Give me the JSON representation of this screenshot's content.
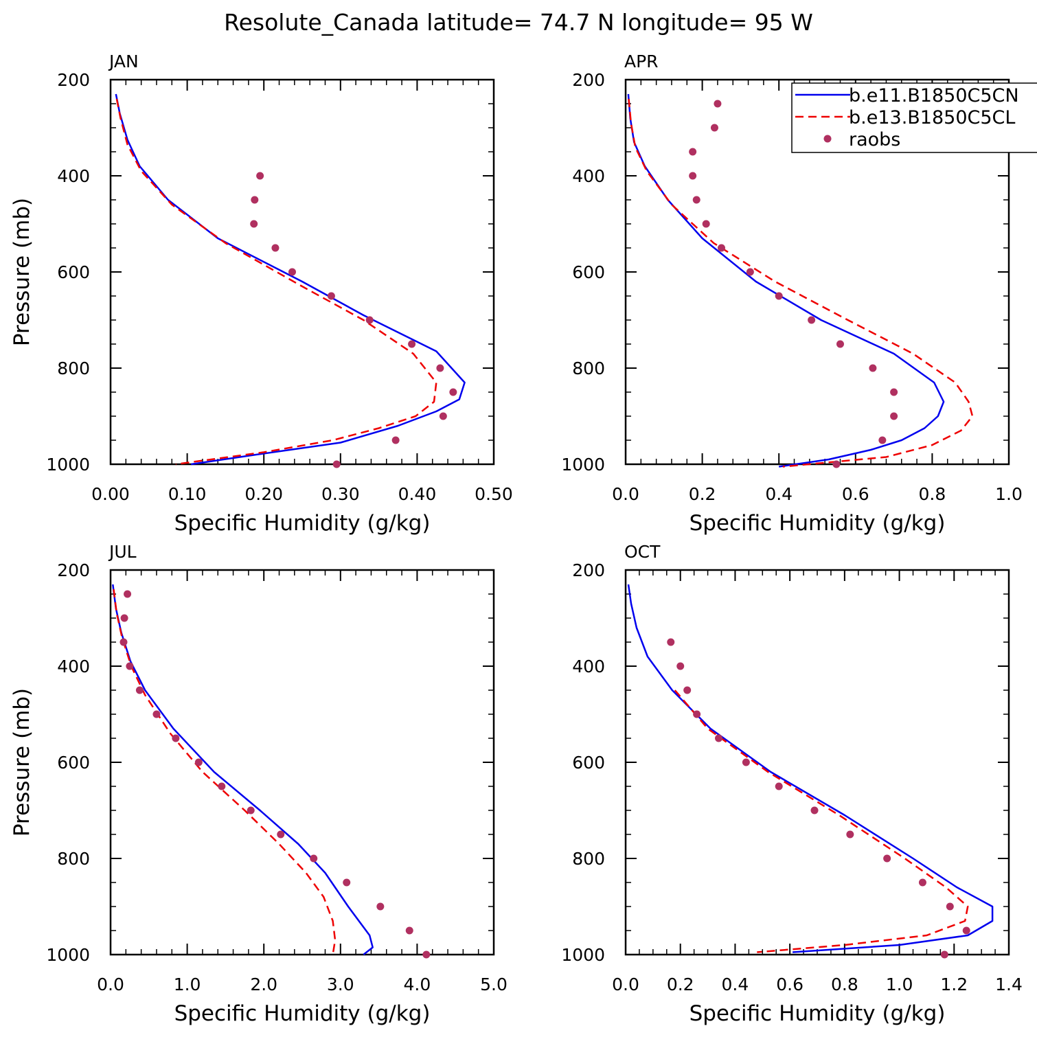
{
  "figure_title": "Resolute_Canada  latitude= 74.7 N longitude= 95 W",
  "legend": {
    "placement": "top-right of APR panel",
    "entries": [
      {
        "label": "b.e11.B1850C5CN",
        "color": "#0000ee",
        "style": "solid"
      },
      {
        "label": "b.e13.B1850C5CL",
        "color": "#ee0000",
        "style": "dashed"
      },
      {
        "label": "raobs",
        "color": "#b03060",
        "style": "marker"
      }
    ]
  },
  "chart_data": [
    {
      "type": "line",
      "panel_label": "JAN",
      "xlabel": "Specific Humidity (g/kg)",
      "ylabel": "Pressure (mb)",
      "xlim": [
        0,
        0.5
      ],
      "ylim": [
        1000,
        200
      ],
      "y_reversed": true,
      "xticks": [
        "0.00",
        "0.10",
        "0.20",
        "0.30",
        "0.40",
        "0.50"
      ],
      "yticks": [
        "200",
        "400",
        "600",
        "800",
        "1000"
      ],
      "series": [
        {
          "name": "b.e11.B1850C5CN",
          "y": [
            230,
            270,
            325,
            380,
            450,
            530,
            620,
            690,
            765,
            830,
            865,
            890,
            920,
            955,
            980,
            1000
          ],
          "x": [
            0.007,
            0.012,
            0.022,
            0.038,
            0.075,
            0.14,
            0.25,
            0.33,
            0.425,
            0.462,
            0.455,
            0.425,
            0.375,
            0.3,
            0.19,
            0.105
          ]
        },
        {
          "name": "b.e13.B1850C5CL",
          "y": [
            240,
            280,
            335,
            390,
            460,
            540,
            630,
            700,
            770,
            830,
            870,
            900,
            925,
            950,
            975,
            1000
          ],
          "x": [
            0.008,
            0.013,
            0.022,
            0.04,
            0.08,
            0.15,
            0.25,
            0.33,
            0.395,
            0.425,
            0.422,
            0.398,
            0.35,
            0.29,
            0.2,
            0.085
          ]
        },
        {
          "name": "raobs",
          "y": [
            400,
            450,
            500,
            550,
            600,
            650,
            700,
            750,
            800,
            850,
            900,
            950,
            1000
          ],
          "x": [
            0.195,
            0.188,
            0.187,
            0.215,
            0.237,
            0.288,
            0.338,
            0.393,
            0.43,
            0.447,
            0.434,
            0.372,
            0.295
          ]
        }
      ]
    },
    {
      "type": "line",
      "panel_label": "APR",
      "xlabel": "Specific Humidity (g/kg)",
      "ylabel": "",
      "xlim": [
        0,
        1.0
      ],
      "ylim": [
        1000,
        200
      ],
      "y_reversed": true,
      "xticks": [
        "0.0",
        "0.2",
        "0.4",
        "0.6",
        "0.8",
        "1.0"
      ],
      "yticks": [
        "200",
        "400",
        "600",
        "800",
        "1000"
      ],
      "series": [
        {
          "name": "b.e11.B1850C5CN",
          "y": [
            230,
            280,
            330,
            380,
            450,
            530,
            620,
            700,
            770,
            830,
            870,
            900,
            925,
            950,
            970,
            990,
            1005
          ],
          "x": [
            0.007,
            0.012,
            0.022,
            0.05,
            0.11,
            0.2,
            0.34,
            0.51,
            0.7,
            0.805,
            0.83,
            0.815,
            0.78,
            0.72,
            0.64,
            0.53,
            0.4
          ]
        },
        {
          "name": "b.e13.B1850C5CL",
          "y": [
            240,
            290,
            340,
            390,
            460,
            540,
            620,
            700,
            770,
            830,
            870,
            900,
            930,
            960,
            985,
            1005
          ],
          "x": [
            0.008,
            0.014,
            0.025,
            0.055,
            0.12,
            0.23,
            0.39,
            0.58,
            0.75,
            0.86,
            0.895,
            0.905,
            0.875,
            0.8,
            0.68,
            0.41
          ]
        },
        {
          "name": "raobs",
          "y": [
            250,
            300,
            350,
            400,
            450,
            500,
            550,
            600,
            650,
            700,
            750,
            800,
            850,
            900,
            950,
            1000
          ],
          "x": [
            0.24,
            0.232,
            0.175,
            0.175,
            0.185,
            0.21,
            0.25,
            0.325,
            0.4,
            0.485,
            0.56,
            0.645,
            0.7,
            0.7,
            0.67,
            0.55
          ]
        }
      ]
    },
    {
      "type": "line",
      "panel_label": "JUL",
      "xlabel": "Specific Humidity (g/kg)",
      "ylabel": "Pressure (mb)",
      "xlim": [
        0,
        5.0
      ],
      "ylim": [
        1000,
        200
      ],
      "y_reversed": true,
      "xticks": [
        "0.0",
        "1.0",
        "2.0",
        "3.0",
        "4.0",
        "5.0"
      ],
      "yticks": [
        "200",
        "400",
        "600",
        "800",
        "1000"
      ],
      "series": [
        {
          "name": "b.e11.B1850C5CN",
          "y": [
            230,
            280,
            330,
            390,
            450,
            530,
            620,
            700,
            770,
            830,
            900,
            960,
            985,
            1000
          ],
          "x": [
            0.03,
            0.07,
            0.14,
            0.26,
            0.45,
            0.82,
            1.35,
            1.95,
            2.45,
            2.8,
            3.1,
            3.38,
            3.42,
            3.3
          ]
        },
        {
          "name": "b.e13.B1850C5CL",
          "y": [
            240,
            290,
            340,
            400,
            460,
            540,
            620,
            700,
            770,
            830,
            880,
            930,
            970,
            1000
          ],
          "x": [
            0.04,
            0.08,
            0.15,
            0.27,
            0.45,
            0.78,
            1.2,
            1.75,
            2.2,
            2.55,
            2.78,
            2.9,
            2.93,
            2.9
          ]
        },
        {
          "name": "raobs",
          "y": [
            250,
            300,
            350,
            400,
            450,
            500,
            550,
            600,
            650,
            700,
            750,
            800,
            850,
            900,
            950,
            1000
          ],
          "x": [
            0.22,
            0.18,
            0.17,
            0.25,
            0.38,
            0.6,
            0.85,
            1.15,
            1.45,
            1.83,
            2.22,
            2.65,
            3.08,
            3.52,
            3.9,
            4.12
          ]
        }
      ]
    },
    {
      "type": "line",
      "panel_label": "OCT",
      "xlabel": "Specific Humidity (g/kg)",
      "ylabel": "",
      "xlim": [
        0,
        1.4
      ],
      "ylim": [
        1000,
        200
      ],
      "y_reversed": true,
      "xticks": [
        "0.0",
        "0.2",
        "0.4",
        "0.6",
        "0.8",
        "1.0",
        "1.2",
        "1.4"
      ],
      "yticks": [
        "200",
        "400",
        "600",
        "800",
        "1000"
      ],
      "series": [
        {
          "name": "b.e11.B1850C5CN",
          "y": [
            230,
            270,
            320,
            380,
            450,
            530,
            620,
            710,
            800,
            860,
            900,
            930,
            960,
            980,
            995
          ],
          "x": [
            0.01,
            0.02,
            0.04,
            0.08,
            0.17,
            0.31,
            0.53,
            0.8,
            1.05,
            1.21,
            1.34,
            1.34,
            1.25,
            1.0,
            0.61
          ]
        },
        {
          "name": "b.e13.B1850C5CL",
          "y": [
            450,
            530,
            620,
            710,
            800,
            860,
            900,
            930,
            960,
            980,
            995
          ],
          "x": [
            0.18,
            0.3,
            0.52,
            0.78,
            1.02,
            1.17,
            1.25,
            1.24,
            1.1,
            0.8,
            0.48
          ]
        },
        {
          "name": "raobs",
          "y": [
            350,
            400,
            450,
            500,
            550,
            600,
            650,
            700,
            750,
            800,
            850,
            900,
            950,
            1000
          ],
          "x": [
            0.165,
            0.2,
            0.225,
            0.26,
            0.34,
            0.44,
            0.56,
            0.69,
            0.82,
            0.955,
            1.085,
            1.185,
            1.245,
            1.165
          ]
        }
      ]
    }
  ]
}
